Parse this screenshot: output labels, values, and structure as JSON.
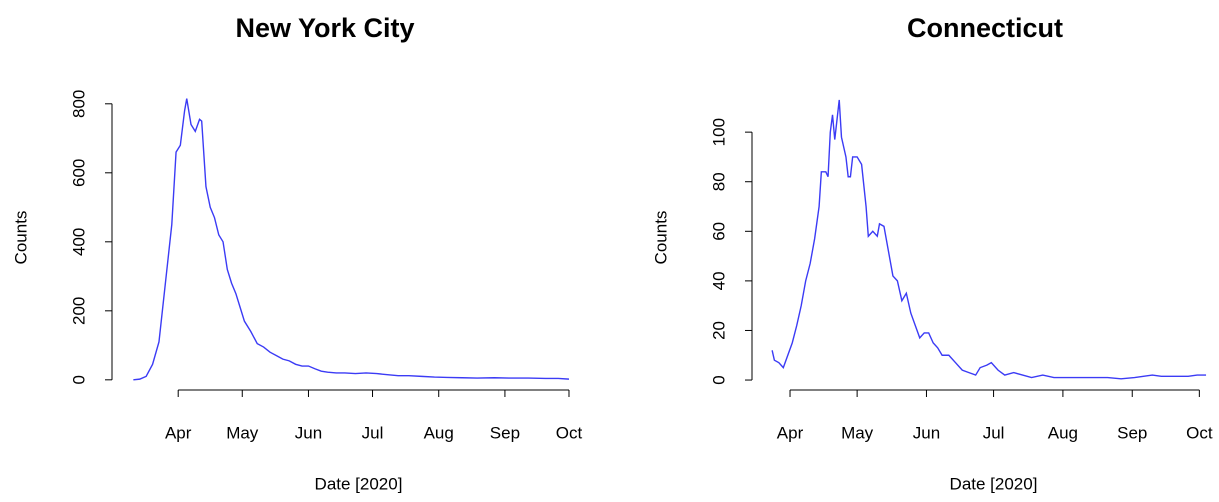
{
  "chart_data": [
    {
      "type": "line",
      "title": "New York City",
      "x_label": "Date [2020]",
      "y_label": "Counts",
      "xlim": [
        61,
        282.5
      ],
      "ylim": [
        -15,
        840
      ],
      "xticks": [
        {
          "value": 92,
          "label": "Apr"
        },
        {
          "value": 122,
          "label": "May"
        },
        {
          "value": 153,
          "label": "Jun"
        },
        {
          "value": 183,
          "label": "Jul"
        },
        {
          "value": 214,
          "label": "Aug"
        },
        {
          "value": 245,
          "label": "Sep"
        },
        {
          "value": 275,
          "label": "Oct"
        }
      ],
      "yticks": [
        0,
        200,
        400,
        600,
        800
      ],
      "x": [
        71,
        74,
        77,
        80,
        83,
        86,
        89,
        91,
        93,
        95,
        96,
        98,
        100,
        102,
        103,
        105,
        107,
        109,
        111,
        113,
        115,
        117,
        119,
        121,
        123,
        126,
        129,
        132,
        135,
        138,
        141,
        144,
        147,
        150,
        153,
        156,
        159,
        162,
        166,
        170,
        175,
        180,
        185,
        190,
        195,
        200,
        206,
        212,
        218,
        225,
        232,
        240,
        248,
        256,
        264,
        270,
        275
      ],
      "series": [
        {
          "color": "#3b3bf5",
          "values": [
            0,
            2,
            10,
            45,
            110,
            280,
            450,
            660,
            680,
            780,
            815,
            740,
            720,
            755,
            750,
            560,
            500,
            470,
            420,
            400,
            320,
            280,
            250,
            210,
            170,
            140,
            105,
            95,
            80,
            70,
            60,
            55,
            45,
            40,
            40,
            32,
            25,
            22,
            20,
            20,
            18,
            20,
            18,
            15,
            12,
            12,
            10,
            8,
            7,
            6,
            5,
            6,
            5,
            5,
            4,
            4,
            2
          ]
        }
      ]
    },
    {
      "type": "line",
      "title": "Connecticut",
      "x_label": "Date [2020]",
      "y_label": "Counts",
      "xlim": [
        75,
        282
      ],
      "ylim": [
        -2,
        117
      ],
      "xticks": [
        {
          "value": 92,
          "label": "Apr"
        },
        {
          "value": 122,
          "label": "May"
        },
        {
          "value": 153,
          "label": "Jun"
        },
        {
          "value": 183,
          "label": "Jul"
        },
        {
          "value": 214,
          "label": "Aug"
        },
        {
          "value": 245,
          "label": "Sep"
        },
        {
          "value": 275,
          "label": "Oct"
        }
      ],
      "yticks": [
        0,
        20,
        40,
        60,
        80,
        100
      ],
      "x": [
        84,
        85,
        87,
        89,
        91,
        93,
        95,
        97,
        99,
        101,
        103,
        105,
        106,
        108,
        109,
        110,
        111,
        112,
        113,
        114,
        115,
        117,
        118,
        119,
        120,
        122,
        124,
        126,
        127,
        129,
        131,
        132,
        134,
        136,
        138,
        140,
        142,
        144,
        146,
        148,
        150,
        152,
        154,
        156,
        158,
        160,
        163,
        166,
        169,
        172,
        175,
        177,
        180,
        182,
        185,
        188,
        192,
        196,
        200,
        205,
        210,
        216,
        222,
        228,
        234,
        240,
        246,
        250,
        254,
        258,
        262,
        266,
        270,
        274,
        278
      ],
      "series": [
        {
          "color": "#3b3bf5",
          "values": [
            12,
            8,
            7,
            5,
            10,
            15,
            22,
            30,
            40,
            47,
            57,
            70,
            84,
            84,
            82,
            100,
            107,
            97,
            105,
            113,
            98,
            90,
            82,
            82,
            90,
            90,
            87,
            70,
            58,
            60,
            58,
            63,
            62,
            52,
            42,
            40,
            32,
            35,
            27,
            22,
            17,
            19,
            19,
            15,
            13,
            10,
            10,
            7,
            4,
            3,
            2,
            5,
            6,
            7,
            4,
            2,
            3,
            2,
            1,
            2,
            1,
            1,
            1,
            1,
            1,
            0.5,
            1,
            1.5,
            2,
            1.5,
            1.5,
            1.5,
            1.5,
            2,
            2
          ]
        }
      ]
    }
  ]
}
